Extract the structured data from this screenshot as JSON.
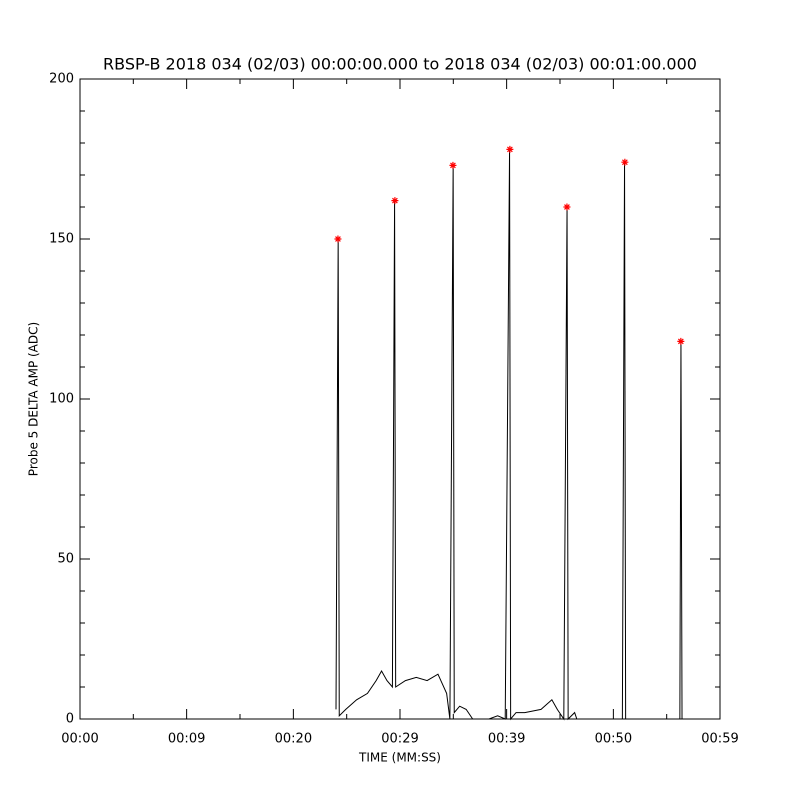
{
  "chart_data": {
    "type": "line",
    "title": "RBSP-B 2018 034 (02/03) 00:00:00.000 to 2018 034 (02/03) 00:01:00.000",
    "xlabel": "TIME (MM:SS)",
    "ylabel": "Probe 5 DELTA AMP (ADC)",
    "xlim": [
      0,
      59
    ],
    "ylim": [
      0,
      200
    ],
    "xticks": [
      {
        "value": 0,
        "label": "00:00"
      },
      {
        "value": 9.83,
        "label": "00:09"
      },
      {
        "value": 19.67,
        "label": "00:20"
      },
      {
        "value": 29.5,
        "label": "00:29"
      },
      {
        "value": 39.33,
        "label": "00:39"
      },
      {
        "value": 49.17,
        "label": "00:50"
      },
      {
        "value": 59,
        "label": "00:59"
      }
    ],
    "yticks": [
      0,
      50,
      100,
      150,
      200
    ],
    "xminor": 2,
    "yminor": 5,
    "series": [
      {
        "color": "#000000",
        "marker": "none",
        "x": [
          23.6,
          23.8,
          23.9,
          24.5,
          25.5,
          26.5,
          27.3,
          27.8,
          28.3,
          28.8,
          29.0,
          29.1,
          30.0,
          31.0,
          32.0,
          33.0,
          33.8,
          34.1,
          34.4,
          34.5,
          35.0,
          35.6,
          36.2,
          37.0,
          37.7,
          38.5,
          39.2,
          39.6,
          39.7,
          40.2,
          41.0,
          42.5,
          43.5,
          44.0,
          44.6,
          44.9,
          45.0,
          45.6,
          45.8,
          50.0,
          50.2,
          50.3,
          51.5,
          55.3,
          55.4,
          55.5
        ],
        "values": [
          3,
          150,
          1,
          3,
          6,
          8,
          12,
          15,
          12,
          10,
          162,
          10,
          12,
          13,
          12,
          14,
          8,
          0,
          173,
          2,
          4,
          3,
          0,
          0,
          0,
          1,
          0,
          178,
          0,
          2,
          2,
          3,
          6,
          3,
          0,
          160,
          0,
          2,
          0,
          0,
          174,
          0,
          0,
          0,
          118,
          0
        ]
      },
      {
        "color": "#ff0000",
        "marker": "asterisk",
        "x": [
          23.78,
          29.03,
          34.38,
          39.63,
          44.89,
          50.23,
          55.39
        ],
        "values": [
          150,
          162,
          173,
          178,
          160,
          174,
          118
        ]
      }
    ]
  }
}
